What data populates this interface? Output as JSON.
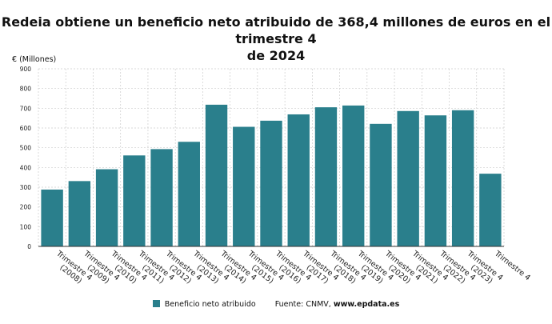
{
  "header": {
    "title_line1": "Redeia obtiene un beneficio neto atribuido de 368,4 millones de euros en el trimestre 4",
    "title_line2": "de 2024",
    "unit_label": "€ (Millones)"
  },
  "legend": {
    "series_label": "Beneficio neto atribuido",
    "source_prefix": "Fuente: CNMV,",
    "source_brand": "www.epdata.es"
  },
  "colors": {
    "bar": "#2a7f8c",
    "grid": "#cccccc",
    "axis": "#333333"
  },
  "chart_data": {
    "type": "bar",
    "title": "Redeia obtiene un beneficio neto atribuido de 368,4 millones de euros en el trimestre 4 de 2024",
    "ylabel": "€ (Millones)",
    "ylim": [
      0,
      900
    ],
    "yticks": [
      0,
      100,
      200,
      300,
      400,
      500,
      600,
      700,
      800,
      900
    ],
    "grid": true,
    "legend_position": "bottom",
    "categories": [
      [
        "Trimestre 4",
        "(2008)"
      ],
      [
        "Trimestre 4",
        "(2009)"
      ],
      [
        "Trimestre 4",
        "(2010)"
      ],
      [
        "Trimestre 4",
        "(2011)"
      ],
      [
        "Trimestre 4",
        "(2012)"
      ],
      [
        "Trimestre 4",
        "(2013)"
      ],
      [
        "Trimestre 4",
        "(2014)"
      ],
      [
        "Trimestre 4",
        "(2015)"
      ],
      [
        "Trimestre 4",
        "(2016)"
      ],
      [
        "Trimestre 4",
        "(2017)"
      ],
      [
        "Trimestre 4",
        "(2018)"
      ],
      [
        "Trimestre 4",
        "(2019)"
      ],
      [
        "Trimestre 4",
        "(2020)"
      ],
      [
        "Trimestre 4",
        "(2021)"
      ],
      [
        "Trimestre 4",
        "(2022)"
      ],
      [
        "Trimestre 4",
        "(2023)"
      ],
      [
        "Trimestre 4",
        ""
      ]
    ],
    "series": [
      {
        "name": "Beneficio neto atribuido",
        "values": [
          288,
          331,
          391,
          461,
          493,
          530,
          718,
          606,
          637,
          669,
          705,
          714,
          621,
          686,
          664,
          690,
          368.4
        ]
      }
    ]
  }
}
